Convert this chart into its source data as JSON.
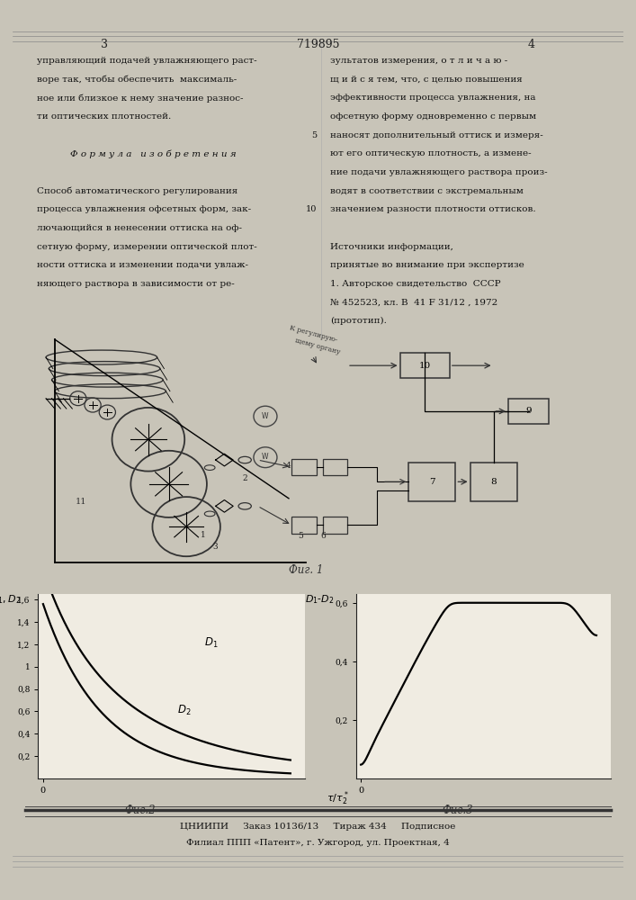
{
  "bg_color": "#c8c4b8",
  "page_color": "#f0ece2",
  "page_num_left": "3",
  "patent_num": "719895",
  "page_num_right": "4",
  "left_col_text": [
    "управляющий подачей увлажняющего раст-",
    "воре так, чтобы обеспечить  максималь-",
    "ное или близкое к нему значение разнос-",
    "ти оптических плотностей.",
    "",
    "Ф о р м у л а   и з о б р е т е н и я",
    "",
    "Способ автоматического регулирования",
    "процесса увлажнения офсетных форм, зак-",
    "лючающийся в ненесении оттиска на оф-",
    "сетную форму, измерении оптической плот-",
    "ности оттиска и изменении подачи увлаж-",
    "няющего раствора в зависимости от ре-"
  ],
  "right_col_text": [
    "зультатов измерения, о т л и ч а ю -",
    "щ и й с я тем, что, с целью повышения",
    "эффективности процесса увлажнения, на",
    "офсетную форму одновременно с первым",
    "наносят дополнительный оттиск и измеря-",
    "ют его оптическую плотность, а измене-",
    "ние подачи увлажняющего раствора произ-",
    "водят в соответствии с экстремальным",
    "значением разности плотности оттисков.",
    "",
    "Источники информации,",
    "принятые во внимание при экспертизе",
    "1. Авторское свидетельство  СССР",
    "№ 452523, кл. B  41 F 31/12 , 1972",
    "(прототип)."
  ],
  "fig2_ytick_vals": [
    0.2,
    0.4,
    0.6,
    0.8,
    1.0,
    1.2,
    1.4,
    1.6
  ],
  "fig2_ytick_labels": [
    "0,2",
    "0,4",
    "0,6",
    "0,8",
    "1",
    "1,2",
    "1,4",
    "1,6"
  ],
  "fig3_ytick_vals": [
    0.2,
    0.4,
    0.6
  ],
  "fig3_ytick_labels": [
    "0,2",
    "0,4",
    "0,6"
  ],
  "footer_line1": "ЦНИИПИ     Заказ 10136/13     Тираж 434     Подписное",
  "footer_line2": "Филиал ППП «Патент», г. Ужгород, ул. Проектная, 4"
}
